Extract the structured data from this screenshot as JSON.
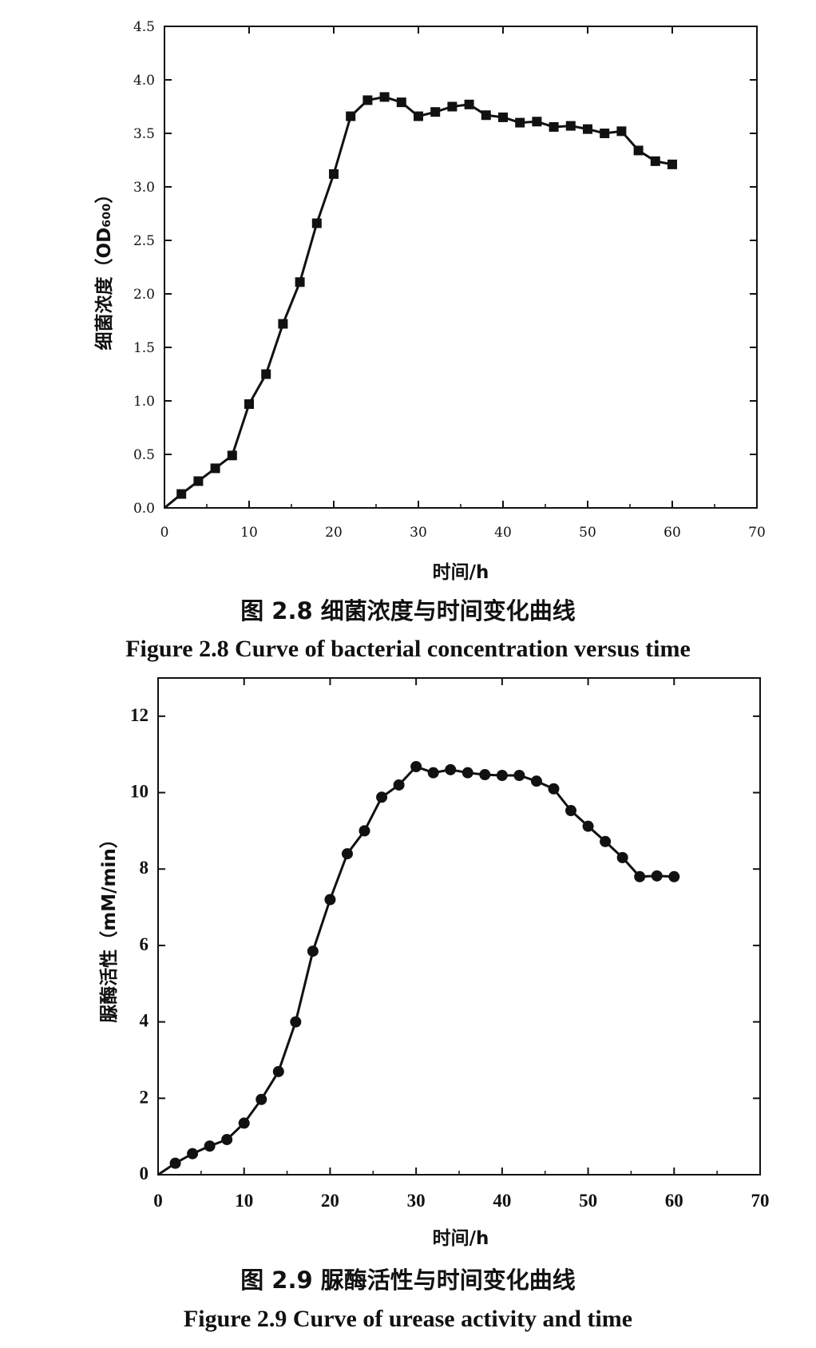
{
  "chart_data": [
    {
      "type": "line",
      "marker": "square",
      "xlabel": "时间/h",
      "ylabel": "细菌浓度（OD₆₀₀）",
      "xlim": [
        0,
        70
      ],
      "ylim": [
        0,
        4.5
      ],
      "xticks": [
        0,
        10,
        20,
        30,
        40,
        50,
        60,
        70
      ],
      "yticks": [
        0.0,
        0.5,
        1.0,
        1.5,
        2.0,
        2.5,
        3.0,
        3.5,
        4.0,
        4.5
      ],
      "ytick_labels": [
        "0.0",
        "0.5",
        "1.0",
        "1.5",
        "2.0",
        "2.5",
        "3.0",
        "3.5",
        "4.0",
        "4.5"
      ],
      "x": [
        0,
        2,
        4,
        6,
        8,
        10,
        12,
        14,
        16,
        18,
        20,
        22,
        24,
        26,
        28,
        30,
        32,
        34,
        36,
        38,
        40,
        42,
        44,
        46,
        48,
        50,
        52,
        54,
        56,
        58,
        60
      ],
      "values": [
        0.0,
        0.13,
        0.25,
        0.37,
        0.49,
        0.97,
        1.25,
        1.72,
        2.11,
        2.66,
        3.12,
        3.66,
        3.81,
        3.84,
        3.79,
        3.66,
        3.7,
        3.75,
        3.77,
        3.67,
        3.65,
        3.6,
        3.61,
        3.56,
        3.57,
        3.54,
        3.5,
        3.52,
        3.34,
        3.24,
        3.21
      ],
      "caption_cn": "图 2.8   细菌浓度与时间变化曲线",
      "caption_en": "Figure 2.8    Curve of bacterial concentration versus time"
    },
    {
      "type": "line",
      "marker": "circle",
      "xlabel": "时间/h",
      "ylabel": "脲酶活性（mM/min）",
      "xlim": [
        0,
        70
      ],
      "ylim": [
        0,
        13
      ],
      "xticks": [
        0,
        10,
        20,
        30,
        40,
        50,
        60,
        70
      ],
      "yticks": [
        0,
        2,
        4,
        6,
        8,
        10,
        12
      ],
      "ytick_labels": [
        "0",
        "2",
        "4",
        "6",
        "8",
        "10",
        "12"
      ],
      "x": [
        0,
        2,
        4,
        6,
        8,
        10,
        12,
        14,
        16,
        18,
        20,
        22,
        24,
        26,
        28,
        30,
        32,
        34,
        36,
        38,
        40,
        42,
        44,
        46,
        48,
        50,
        52,
        54,
        56,
        58,
        60
      ],
      "values": [
        0.0,
        0.3,
        0.55,
        0.75,
        0.92,
        1.35,
        1.97,
        2.7,
        4.0,
        5.85,
        7.2,
        8.4,
        9.0,
        9.88,
        10.2,
        10.68,
        10.52,
        10.6,
        10.52,
        10.47,
        10.45,
        10.45,
        10.3,
        10.1,
        9.53,
        9.12,
        8.72,
        8.3,
        7.8,
        7.82,
        7.8
      ],
      "caption_cn": "图 2.9   脲酶活性与时间变化曲线",
      "caption_en": "Figure 2.9    Curve of urease activity and time"
    }
  ]
}
